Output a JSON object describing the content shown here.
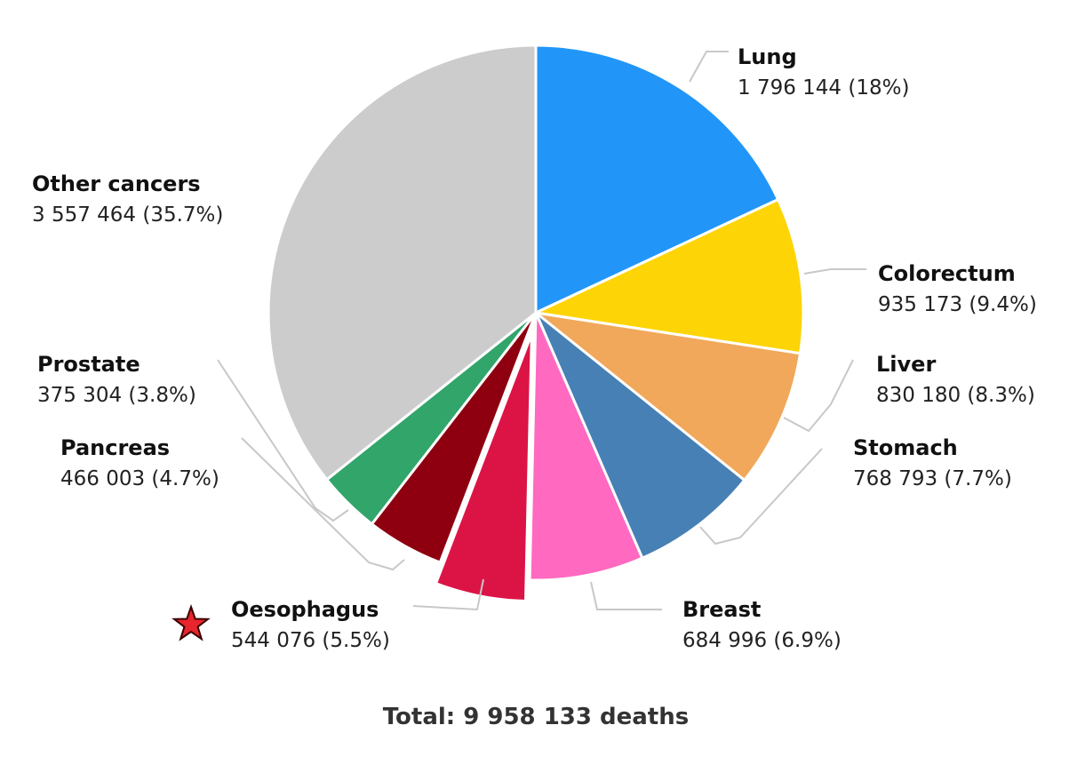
{
  "chart_data": {
    "type": "pie",
    "title": "",
    "total_label": "Total: 9 958 133 deaths",
    "highlight": "Oesophagus",
    "slices": [
      {
        "name": "Lung",
        "value": 1796144,
        "percent": 18.0,
        "value_label": "1 796 144 (18%)",
        "color": "#2196F8"
      },
      {
        "name": "Colorectum",
        "value": 935173,
        "percent": 9.4,
        "value_label": "935 173 (9.4%)",
        "color": "#FDD406"
      },
      {
        "name": "Liver",
        "value": 830180,
        "percent": 8.3,
        "value_label": "830 180 (8.3%)",
        "color": "#F1A85A"
      },
      {
        "name": "Stomach",
        "value": 768793,
        "percent": 7.7,
        "value_label": "768 793 (7.7%)",
        "color": "#4780B4"
      },
      {
        "name": "Breast",
        "value": 684996,
        "percent": 6.9,
        "value_label": "684 996 (6.9%)",
        "color": "#FF69C0"
      },
      {
        "name": "Oesophagus",
        "value": 544076,
        "percent": 5.5,
        "value_label": "544 076 (5.5%)",
        "color": "#DC1446"
      },
      {
        "name": "Pancreas",
        "value": 466003,
        "percent": 4.7,
        "value_label": "466 003 (4.7%)",
        "color": "#8E0010"
      },
      {
        "name": "Prostate",
        "value": 375304,
        "percent": 3.8,
        "value_label": "375 304 (3.8%)",
        "color": "#32A56A"
      },
      {
        "name": "Other cancers",
        "value": 3557464,
        "percent": 35.7,
        "value_label": "3 557 464 (35.7%)",
        "color": "#CCCCCC"
      }
    ],
    "marker": {
      "icon": "star-icon",
      "color": "#E8242C"
    }
  }
}
